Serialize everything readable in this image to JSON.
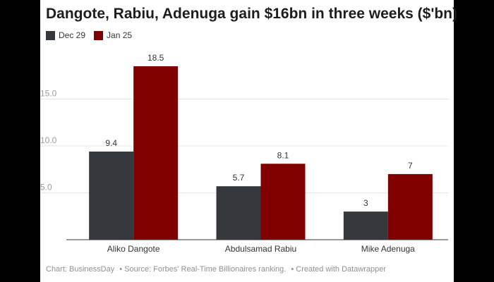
{
  "chart_data": {
    "type": "bar",
    "title": "Dangote, Rabiu, Adenuga gain $16bn in three weeks ($'bn)",
    "categories": [
      "Aliko Dangote",
      "Abdulsamad Rabiu",
      "Mike Adenuga"
    ],
    "series": [
      {
        "name": "Dec 29",
        "values": [
          9.4,
          5.7,
          3
        ],
        "labels": [
          "9.4",
          "5.7",
          "3"
        ],
        "color": "#35383c"
      },
      {
        "name": "Jan 25",
        "values": [
          18.5,
          8.1,
          7
        ],
        "labels": [
          "18.5",
          "8.1",
          "7"
        ],
        "color": "#800000"
      }
    ],
    "yticks": [
      5.0,
      10.0,
      15.0
    ],
    "ytick_labels": [
      "5.0",
      "10.0",
      "15.0"
    ],
    "ylim": [
      0,
      20.3
    ],
    "grid": true,
    "legend_position": "top-left"
  },
  "footer": {
    "credit": "Chart: BusinessDay",
    "source": "• Source: Forbes' Real-Time Billionaires ranking.",
    "tool": "• Created with Datawrapper"
  }
}
